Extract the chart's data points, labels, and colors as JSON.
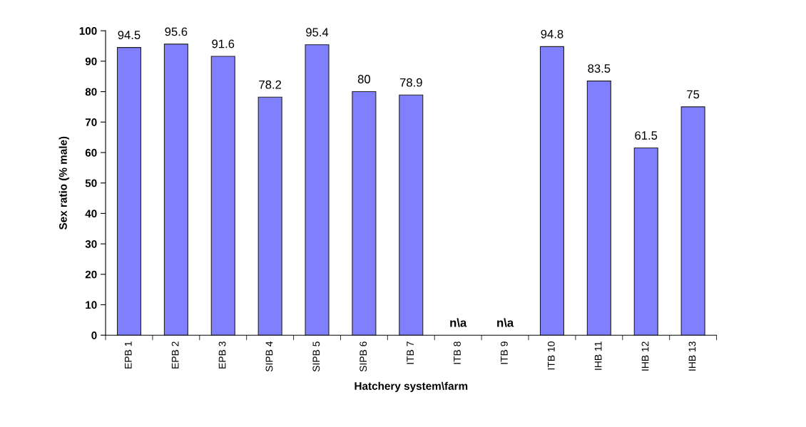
{
  "chart_data": {
    "type": "bar",
    "xlabel": "Hatchery system\\farm",
    "ylabel": "Sex ratio (% male)",
    "categories": [
      "EPB 1",
      "EPB 2",
      "EPB 3",
      "SIPB 4",
      "SIPB 5",
      "SIPB 6",
      "ITB 7",
      "ITB 8",
      "ITB 9",
      "ITB 10",
      "IHB 11",
      "IHB 12",
      "IHB 13"
    ],
    "values": [
      94.5,
      95.6,
      91.6,
      78.2,
      95.4,
      80,
      78.9,
      null,
      null,
      94.8,
      83.5,
      61.5,
      75
    ],
    "value_labels": [
      "94.5",
      "95.6",
      "91.6",
      "78.2",
      "95.4",
      "80",
      "78.9",
      "n\\a",
      "n\\a",
      "94.8",
      "83.5",
      "61.5",
      "75"
    ],
    "color": "#8080ff",
    "ylim": [
      0,
      100
    ],
    "yticks": [
      0,
      10,
      20,
      30,
      40,
      50,
      60,
      70,
      80,
      90,
      100
    ],
    "grid": false,
    "legend": false
  }
}
